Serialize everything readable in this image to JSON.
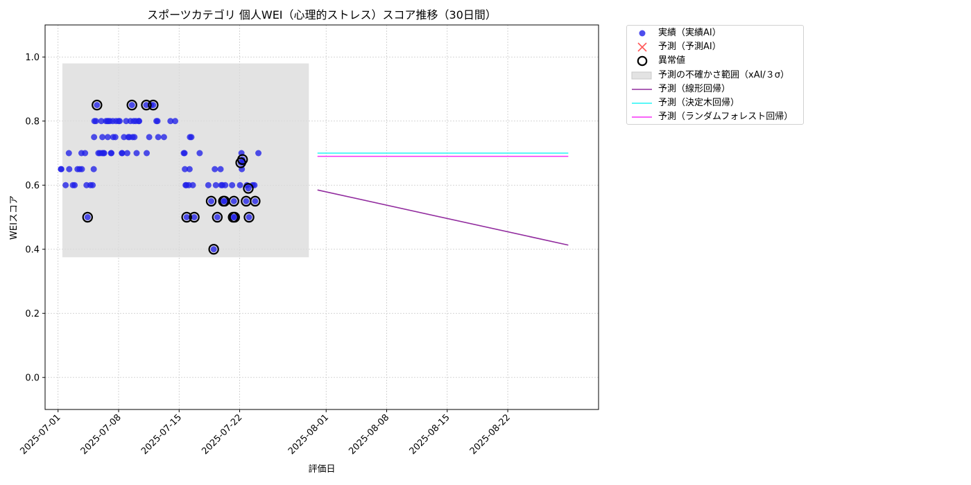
{
  "chart_data": {
    "type": "scatter",
    "title": "スポーツカテゴリ 個人WEI（心理的ストレス）スコア推移（30日間）",
    "xlabel": "評価日",
    "ylabel": "WEIスコア",
    "xlim": [
      "2025-06-29T12:00",
      "2025-09-01T12:00"
    ],
    "ylim": [
      -0.1,
      1.1
    ],
    "x_ticks": [
      "2025-07-01",
      "2025-07-08",
      "2025-07-15",
      "2025-07-22",
      "2025-08-01",
      "2025-08-08",
      "2025-08-15",
      "2025-08-22"
    ],
    "y_ticks": [
      "0.0",
      "0.2",
      "0.4",
      "0.6",
      "0.8",
      "1.0"
    ],
    "grid": true,
    "legend_position": "outside-right-top",
    "colors": {
      "actual": "#2020e8",
      "predicted": "#ff3b3b",
      "anomaly": "#000000",
      "uncertainty": "#d9d9d9",
      "linear": "#912b9e",
      "tree": "#22f5f5",
      "forest": "#f531f5"
    },
    "uncertainty_band": {
      "x_start": "2025-07-01T12:00",
      "x_end": "2025-07-30T00:00",
      "y_low": 0.375,
      "y_high": 0.98
    },
    "series": [
      {
        "name": "実績（実績AI）",
        "kind": "scatter",
        "points": [
          [
            "2025-07-01T08:00",
            0.65
          ],
          [
            "2025-07-01T09:00",
            0.65
          ],
          [
            "2025-07-01T21:00",
            0.6
          ],
          [
            "2025-07-02T06:00",
            0.7
          ],
          [
            "2025-07-02T07:00",
            0.65
          ],
          [
            "2025-07-02T17:00",
            0.6
          ],
          [
            "2025-07-02T22:00",
            0.6
          ],
          [
            "2025-07-03T06:00",
            0.65
          ],
          [
            "2025-07-03T12:00",
            0.65
          ],
          [
            "2025-07-03T17:00",
            0.7
          ],
          [
            "2025-07-03T18:00",
            0.65
          ],
          [
            "2025-07-04T03:00",
            0.7
          ],
          [
            "2025-07-04T07:00",
            0.6
          ],
          [
            "2025-07-04T10:00",
            0.5
          ],
          [
            "2025-07-04T18:00",
            0.6
          ],
          [
            "2025-07-05T00:00",
            0.6
          ],
          [
            "2025-07-05T03:00",
            0.65
          ],
          [
            "2025-07-05T04:00",
            0.75
          ],
          [
            "2025-07-05T05:00",
            0.8
          ],
          [
            "2025-07-05T09:00",
            0.8
          ],
          [
            "2025-07-05T12:00",
            0.85
          ],
          [
            "2025-07-05T16:00",
            0.7
          ],
          [
            "2025-07-05T20:00",
            0.7
          ],
          [
            "2025-07-06T00:00",
            0.8
          ],
          [
            "2025-07-06T02:00",
            0.7
          ],
          [
            "2025-07-06T03:00",
            0.75
          ],
          [
            "2025-07-06T06:00",
            0.7
          ],
          [
            "2025-07-06T08:00",
            0.7
          ],
          [
            "2025-07-06T13:00",
            0.8
          ],
          [
            "2025-07-06T17:00",
            0.8
          ],
          [
            "2025-07-06T18:00",
            0.75
          ],
          [
            "2025-07-06T20:00",
            0.8
          ],
          [
            "2025-07-07T00:00",
            0.8
          ],
          [
            "2025-07-07T03:00",
            0.7
          ],
          [
            "2025-07-07T04:00",
            0.7
          ],
          [
            "2025-07-07T08:00",
            0.8
          ],
          [
            "2025-07-07T09:00",
            0.75
          ],
          [
            "2025-07-07T15:00",
            0.75
          ],
          [
            "2025-07-07T17:00",
            0.8
          ],
          [
            "2025-07-08T00:00",
            0.8
          ],
          [
            "2025-07-08T03:00",
            0.8
          ],
          [
            "2025-07-08T09:00",
            0.7
          ],
          [
            "2025-07-08T10:00",
            0.7
          ],
          [
            "2025-07-08T15:00",
            0.75
          ],
          [
            "2025-07-08T21:00",
            0.8
          ],
          [
            "2025-07-09T00:00",
            0.7
          ],
          [
            "2025-07-09T03:00",
            0.75
          ],
          [
            "2025-07-09T06:00",
            0.75
          ],
          [
            "2025-07-09T09:00",
            0.8
          ],
          [
            "2025-07-09T13:00",
            0.85
          ],
          [
            "2025-07-09T15:00",
            0.75
          ],
          [
            "2025-07-09T18:00",
            0.8
          ],
          [
            "2025-07-09T20:00",
            0.75
          ],
          [
            "2025-07-10T00:00",
            0.8
          ],
          [
            "2025-07-10T02:00",
            0.7
          ],
          [
            "2025-07-10T08:00",
            0.8
          ],
          [
            "2025-07-10T09:00",
            0.8
          ],
          [
            "2025-07-11T05:00",
            0.85
          ],
          [
            "2025-07-11T06:00",
            0.7
          ],
          [
            "2025-07-11T13:00",
            0.75
          ],
          [
            "2025-07-11T18:00",
            0.85
          ],
          [
            "2025-07-12T00:00",
            0.85
          ],
          [
            "2025-07-12T09:00",
            0.8
          ],
          [
            "2025-07-12T12:00",
            0.8
          ],
          [
            "2025-07-12T14:00",
            0.75
          ],
          [
            "2025-07-13T06:00",
            0.75
          ],
          [
            "2025-07-14T00:00",
            0.8
          ],
          [
            "2025-07-14T13:00",
            0.8
          ],
          [
            "2025-07-15T13:00",
            0.7
          ],
          [
            "2025-07-15T15:00",
            0.7
          ],
          [
            "2025-07-15T16:00",
            0.65
          ],
          [
            "2025-07-15T18:00",
            0.6
          ],
          [
            "2025-07-15T20:00",
            0.6
          ],
          [
            "2025-07-15T21:00",
            0.5
          ],
          [
            "2025-07-16T03:00",
            0.6
          ],
          [
            "2025-07-16T05:00",
            0.65
          ],
          [
            "2025-07-16T06:00",
            0.75
          ],
          [
            "2025-07-16T10:00",
            0.75
          ],
          [
            "2025-07-16T14:00",
            0.6
          ],
          [
            "2025-07-16T18:00",
            0.5
          ],
          [
            "2025-07-17T09:00",
            0.7
          ],
          [
            "2025-07-18T09:00",
            0.6
          ],
          [
            "2025-07-18T17:00",
            0.55
          ],
          [
            "2025-07-19T00:00",
            0.4
          ],
          [
            "2025-07-19T03:00",
            0.65
          ],
          [
            "2025-07-19T06:00",
            0.6
          ],
          [
            "2025-07-19T10:00",
            0.5
          ],
          [
            "2025-07-19T19:00",
            0.65
          ],
          [
            "2025-07-19T21:00",
            0.6
          ],
          [
            "2025-07-20T00:00",
            0.6
          ],
          [
            "2025-07-20T03:00",
            0.55
          ],
          [
            "2025-07-20T06:00",
            0.55
          ],
          [
            "2025-07-20T08:00",
            0.6
          ],
          [
            "2025-07-21T03:00",
            0.6
          ],
          [
            "2025-07-21T06:00",
            0.5
          ],
          [
            "2025-07-21T08:00",
            0.55
          ],
          [
            "2025-07-21T10:00",
            0.5
          ],
          [
            "2025-07-22T01:00",
            0.6
          ],
          [
            "2025-07-22T03:00",
            0.67
          ],
          [
            "2025-07-22T05:00",
            0.7
          ],
          [
            "2025-07-22T06:00",
            0.65
          ],
          [
            "2025-07-22T08:00",
            0.68
          ],
          [
            "2025-07-22T10:00",
            0.67
          ],
          [
            "2025-07-22T18:00",
            0.55
          ],
          [
            "2025-07-22T20:00",
            0.6
          ],
          [
            "2025-07-23T00:00",
            0.59
          ],
          [
            "2025-07-23T02:00",
            0.5
          ],
          [
            "2025-07-23T12:00",
            0.6
          ],
          [
            "2025-07-23T17:00",
            0.6
          ],
          [
            "2025-07-23T19:00",
            0.55
          ],
          [
            "2025-07-24T04:00",
            0.7
          ]
        ]
      },
      {
        "name": "予測（予測AI）",
        "kind": "scatter",
        "points": []
      },
      {
        "name": "異常値",
        "kind": "scatter",
        "points": [
          [
            "2025-07-04T10:00",
            0.5
          ],
          [
            "2025-07-05T12:00",
            0.85
          ],
          [
            "2025-07-09T13:00",
            0.85
          ],
          [
            "2025-07-11T05:00",
            0.85
          ],
          [
            "2025-07-12T00:00",
            0.85
          ],
          [
            "2025-07-15T21:00",
            0.5
          ],
          [
            "2025-07-16T18:00",
            0.5
          ],
          [
            "2025-07-18T17:00",
            0.55
          ],
          [
            "2025-07-19T00:00",
            0.4
          ],
          [
            "2025-07-19T10:00",
            0.5
          ],
          [
            "2025-07-20T03:00",
            0.55
          ],
          [
            "2025-07-20T06:00",
            0.55
          ],
          [
            "2025-07-21T06:00",
            0.5
          ],
          [
            "2025-07-21T08:00",
            0.55
          ],
          [
            "2025-07-21T10:00",
            0.5
          ],
          [
            "2025-07-22T03:00",
            0.67
          ],
          [
            "2025-07-22T08:00",
            0.68
          ],
          [
            "2025-07-22T18:00",
            0.55
          ],
          [
            "2025-07-23T00:00",
            0.59
          ],
          [
            "2025-07-23T02:00",
            0.5
          ],
          [
            "2025-07-23T19:00",
            0.55
          ]
        ]
      },
      {
        "name": "予測の不確かさ範囲（xAI/３σ）",
        "kind": "band"
      },
      {
        "name": "予測（線形回帰）",
        "kind": "line",
        "points": [
          [
            "2025-07-31T00:00",
            0.585
          ],
          [
            "2025-08-29T00:00",
            0.413
          ]
        ]
      },
      {
        "name": "予測（決定木回帰）",
        "kind": "line",
        "points": [
          [
            "2025-07-31T00:00",
            0.7
          ],
          [
            "2025-08-29T00:00",
            0.7
          ]
        ]
      },
      {
        "name": "予測（ランダムフォレスト回帰）",
        "kind": "line",
        "points": [
          [
            "2025-07-31T00:00",
            0.69
          ],
          [
            "2025-08-29T00:00",
            0.69
          ]
        ]
      }
    ]
  }
}
